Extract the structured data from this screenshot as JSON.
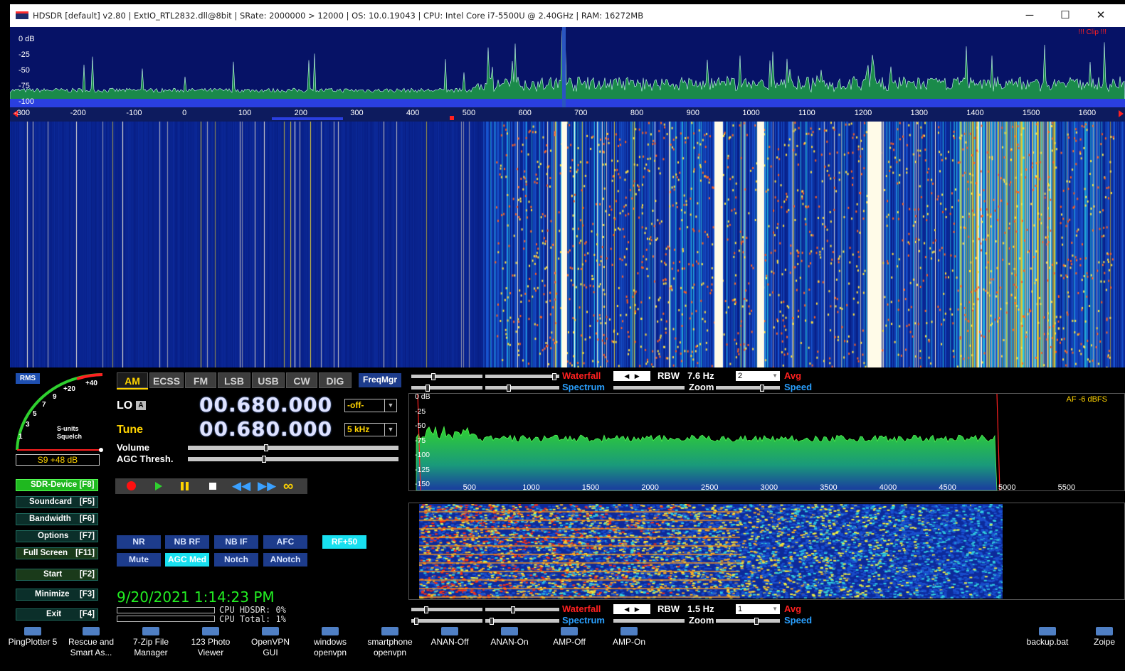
{
  "window": {
    "title": "HDSDR  [default]  v2.80   |  ExtIO_RTL2832.dll@8bit  |  SRate: 2000000 > 12000  |  OS: 10.0.19043  |  CPU: Intel Core i7-5500U @ 2.40GHz  |  RAM: 16272MB",
    "minimize_glyph": "─",
    "maximize_glyph": "☐",
    "close_glyph": "✕"
  },
  "spectrum": {
    "db_labels": [
      "0 dB",
      "-25",
      "-50",
      "-75",
      "-100"
    ],
    "clip_label": "!!! Clip !!!",
    "freq_ticks": [
      "-300",
      "-200",
      "-100",
      "0",
      "100",
      "200",
      "300",
      "400",
      "500",
      "600",
      "700",
      "800",
      "900",
      "1000",
      "1100",
      "1200",
      "1300",
      "1400",
      "1500",
      "1600"
    ]
  },
  "controls": {
    "rms_label": "RMS",
    "smeter_scale": [
      "1",
      "3",
      "5",
      "7",
      "9",
      "+20",
      "+40"
    ],
    "smeter_caption1": "S-units",
    "smeter_caption2": "Squelch",
    "smeter_readout": "S9 +48 dB",
    "modes": [
      "AM",
      "ECSS",
      "FM",
      "LSB",
      "USB",
      "CW",
      "DIG"
    ],
    "active_mode": "AM",
    "freqmgr": "FreqMgr",
    "lo_label": "LO",
    "lo_badge": "A",
    "lo_freq": "00.680.000",
    "lo_select": "-off-",
    "tune_label": "Tune",
    "tune_freq": "00.680.000",
    "tune_select": "5 kHz",
    "volume_label": "Volume",
    "volume_level": 0.37,
    "agc_label": "AGC Thresh.",
    "agc_level": 0.36,
    "side_buttons": [
      {
        "label": "SDR-Device [F8]"
      },
      {
        "label": "Soundcard",
        "key": "[F5]"
      },
      {
        "label": "Bandwidth",
        "key": "[F6]"
      },
      {
        "label": "Options",
        "key": "[F7]"
      },
      {
        "label": "Full Screen",
        "key": "[F11]"
      },
      {
        "label": "Start",
        "key": "[F2]"
      },
      {
        "label": "Minimize",
        "key": "[F3]"
      },
      {
        "label": "Exit",
        "key": "[F4]"
      }
    ],
    "dsp_row1": [
      "NR",
      "NB RF",
      "NB IF",
      "AFC"
    ],
    "rf_btn": "RF+50",
    "dsp_row2": [
      "Mute",
      "AGC Med",
      "Notch",
      "ANotch"
    ],
    "datetime": "9/20/2021 1:14:23 PM",
    "cpu_hdsdr": "CPU HDSDR: 0%",
    "cpu_total": "CPU Total: 1%"
  },
  "rf_waterfall_ctrl": {
    "waterfall": "Waterfall",
    "spectrum": "Spectrum",
    "rbw_label": "RBW",
    "rbw": "7.6 Hz",
    "zoom": "Zoom",
    "avg_value": "2",
    "avg": "Avg",
    "speed": "Speed"
  },
  "af_spectrum": {
    "db_labels": [
      "0 dB",
      "-25",
      "-50",
      "-75",
      "-100",
      "-125",
      "-150"
    ],
    "af_label": "AF  -6 dBFS",
    "freq_ticks": [
      "500",
      "1000",
      "1500",
      "2000",
      "2500",
      "3000",
      "3500",
      "4000",
      "4500",
      "5000",
      "5500"
    ]
  },
  "af_waterfall_ctrl": {
    "waterfall": "Waterfall",
    "spectrum": "Spectrum",
    "rbw_label": "RBW",
    "rbw": "1.5 Hz",
    "zoom": "Zoom",
    "avg_value": "1",
    "avg": "Avg",
    "speed": "Speed"
  },
  "taskbar": [
    {
      "line1": "PingPlotter 5",
      "line2": ""
    },
    {
      "line1": "Rescue and",
      "line2": "Smart As..."
    },
    {
      "line1": "7-Zip File",
      "line2": "Manager"
    },
    {
      "line1": "123 Photo",
      "line2": "Viewer"
    },
    {
      "line1": "OpenVPN",
      "line2": "GUI"
    },
    {
      "line1": "windows",
      "line2": "openvpn"
    },
    {
      "line1": "smartphone",
      "line2": "openvpn"
    },
    {
      "line1": "ANAN-Off",
      "line2": ""
    },
    {
      "line1": "ANAN-On",
      "line2": ""
    },
    {
      "line1": "AMP-Off",
      "line2": ""
    },
    {
      "line1": "AMP-On",
      "line2": ""
    },
    {
      "line1": "backup.bat",
      "line2": ""
    },
    {
      "line1": "Zoipe",
      "line2": ""
    }
  ],
  "colors": {
    "spectrum_bg": "#061266",
    "spectrum_fill": "#1a8a4a",
    "af_fill": "#2fc02f",
    "accent_yellow": "#ffd400",
    "waterfall_label": "#ff2020",
    "spectrum_label": "#2aa0ff",
    "datetime": "#22ee22"
  }
}
